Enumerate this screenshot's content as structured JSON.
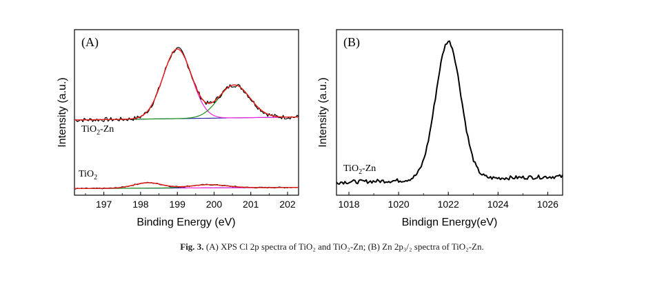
{
  "caption": {
    "fig_num": "Fig. 3.",
    "text": "(A) XPS Cl 2p spectra of TiO₂ and TiO₂-Zn; (B) Zn 2p₃/₂ spectra of TiO₂-Zn."
  },
  "colors": {
    "measured": "#000000",
    "envelope": "#e8201a",
    "peak1": "#ee22dd",
    "peak2": "#1a8c1a",
    "baseline": "#1a1aa8"
  },
  "chart_data": [
    {
      "type": "line",
      "panel_label": "(A)",
      "xlabel": "Binding Energy (eV)",
      "ylabel": "Intensity (a.u.)",
      "xlim": [
        196.2,
        202.3
      ],
      "xticks": [
        197,
        198,
        199,
        200,
        201,
        202
      ],
      "ylim": [
        0,
        1.0
      ],
      "grid": false,
      "legend": "none",
      "samples": [
        {
          "label": "TiO",
          "label_sub": "2",
          "label_suffix": "-Zn",
          "baseline": 0.26,
          "peaks": [
            {
              "name": "",
              "center": 199.0,
              "width": 0.55,
              "height": 0.57
            },
            {
              "name": "",
              "center": 200.55,
              "width": 0.6,
              "height": 0.27
            }
          ],
          "noise": 0.018
        },
        {
          "label": "TiO",
          "label_sub": "2",
          "label_suffix": "",
          "baseline": 0.04,
          "peaks": [
            {
              "name": "",
              "center": 198.2,
              "width": 0.55,
              "height": 0.12
            },
            {
              "name": "",
              "center": 199.85,
              "width": 0.7,
              "height": 0.07
            }
          ],
          "noise": 0.012
        }
      ]
    },
    {
      "type": "line",
      "panel_label": "(B)",
      "xlabel": "Bindign Energy(eV)",
      "ylabel": "Intensity (a.u.)",
      "xlim": [
        1017.5,
        1026.6
      ],
      "xticks": [
        1018,
        1020,
        1022,
        1024,
        1026
      ],
      "ylim": [
        0,
        1.0
      ],
      "grid": false,
      "legend": "none",
      "samples": [
        {
          "label": "TiO",
          "label_sub": "2",
          "label_suffix": "-Zn",
          "baseline": 0.06,
          "peaks": [
            {
              "name": "",
              "center": 1022.0,
              "width": 0.72,
              "height": 0.87
            }
          ],
          "noise": 0.012
        }
      ]
    }
  ]
}
